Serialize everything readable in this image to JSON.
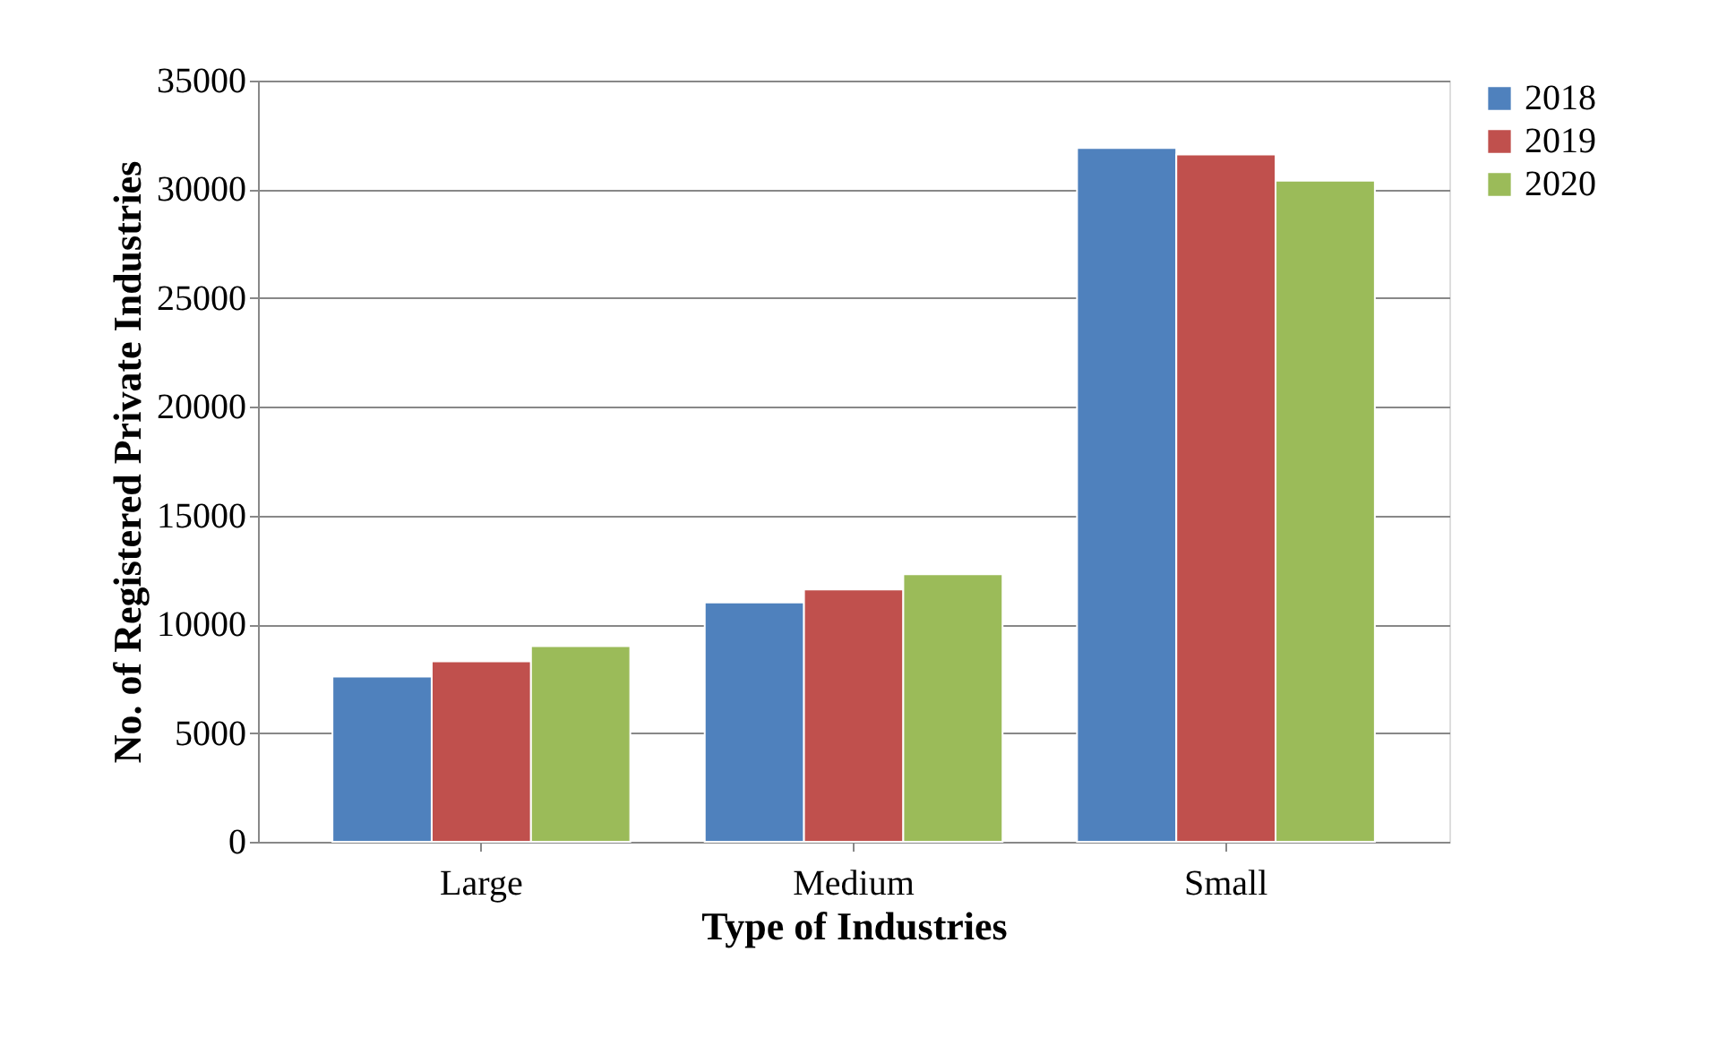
{
  "chart_data": {
    "type": "bar",
    "xlabel": "Type of Industries",
    "ylabel": "No. of Registered Private Industries",
    "categories": [
      "Large",
      "Medium",
      "Small"
    ],
    "series": [
      {
        "name": "2018",
        "color": "#4f81bd",
        "values": [
          7600,
          11000,
          31900
        ]
      },
      {
        "name": "2019",
        "color": "#c0504d",
        "values": [
          8300,
          11600,
          31600
        ]
      },
      {
        "name": "2020",
        "color": "#9bbb59",
        "values": [
          9000,
          12300,
          30400
        ]
      }
    ],
    "ylim": [
      0,
      35000
    ],
    "yticks": [
      0,
      5000,
      10000,
      15000,
      20000,
      25000,
      30000,
      35000
    ],
    "grid": "y",
    "legend": "right"
  }
}
